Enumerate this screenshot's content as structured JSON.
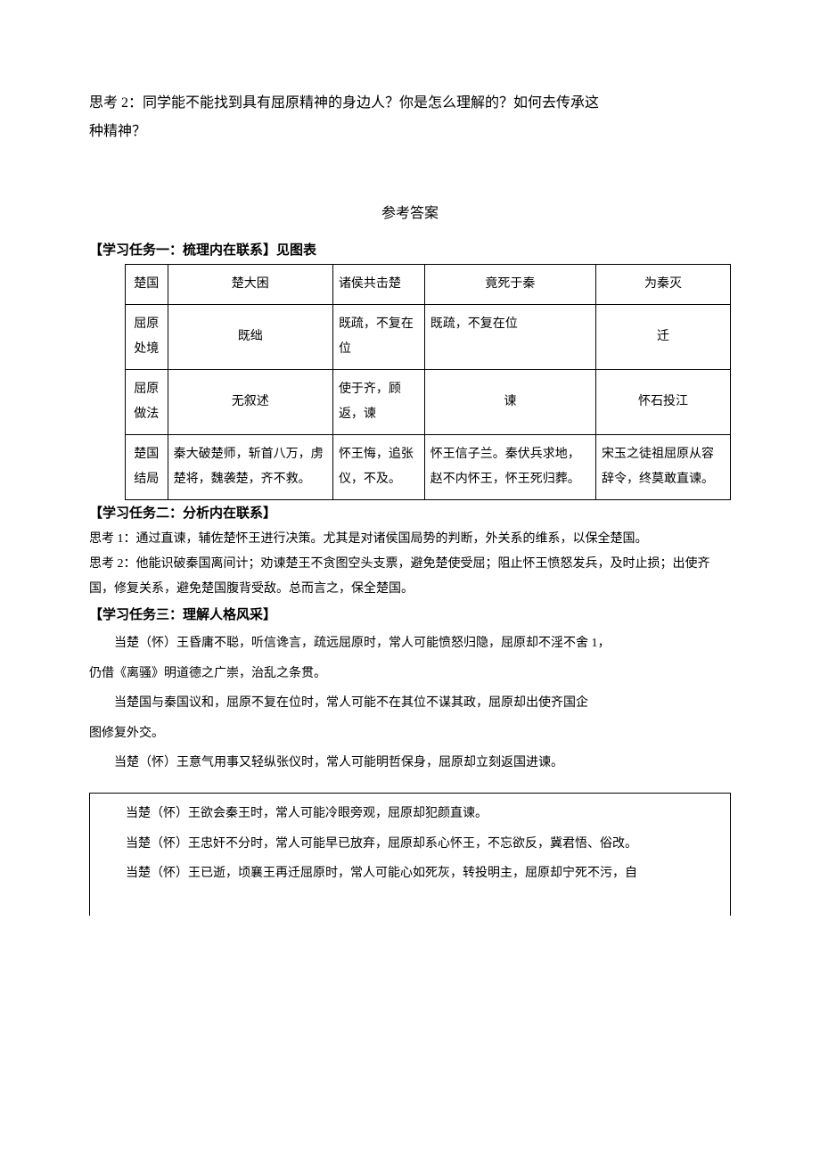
{
  "top": {
    "line1": "思考 2：同学能不能找到具有屈原精神的身边人？你是怎么理解的？如何去传承这",
    "line2": "种精神？"
  },
  "answer_heading": "参考答案",
  "task1": {
    "header": "【学习任务一：梳理内在联系】见图表",
    "r0": [
      "楚国",
      "楚大困",
      "诸侯共击楚",
      "竟死于秦",
      "为秦灭"
    ],
    "r1": [
      "屈原处境",
      "既绌",
      "既疏，不复在位",
      "既疏，不复在位",
      "迁"
    ],
    "r2": [
      "屈原做法",
      "无叙述",
      "使于齐，顾返，谏",
      "谏",
      "怀石投江"
    ],
    "r3": [
      "楚国结局",
      "秦大破楚师，斩首八万，虏楚将，魏袭楚，齐不救。",
      "怀王悔，追张仪，不及。",
      "怀王信子兰。秦伏兵求地，赵不内怀王，怀王死归葬。",
      "宋玉之徒祖屈原从容辞令，终莫敢直谏。"
    ]
  },
  "task2": {
    "header": "【学习任务二：分析内在联系】",
    "p1": "思考 1：通过直谏，辅佐楚怀王进行决策。尤其是对诸侯国局势的判断，外关系的维系，以保全楚国。",
    "p2": "思考 2：他能识破秦国离间计；劝谏楚王不贪图空头支票，避免楚使受屈；阻止怀王愤怒发兵，及时止损；出使齐国，修复关系，避免楚国腹背受敌。总而言之，保全楚国。"
  },
  "task3": {
    "header": "【学习任务三：理解人格风采】",
    "p1": "当楚（怀）王昏庸不聪，听信谗言，疏远屈原时，常人可能愤怒归隐，屈原却不淫不舍 1，",
    "p1b": "仍借《离骚》明道德之广崇，治乱之条贯。",
    "p2": "当楚国与秦国议和，屈原不复在位时，常人可能不在其位不谋其政，屈原却出使齐国企",
    "p2b": "图修复外交。",
    "p3": "当楚（怀）王意气用事又轻纵张仪时，常人可能明哲保身，屈原却立刻返国进谏。",
    "p4": "当楚（怀）王欲会秦王时，常人可能冷眼旁观，屈原却犯颜直谏。",
    "p5": "当楚（怀）王忠奸不分时，常人可能早已放弃，屈原却系心怀王，不忘欲反，冀君悟、俗改。",
    "p6": "当楚（怀）王已逝，顷襄王再迁屈原时，常人可能心如死灰，转投明主，屈原却宁死不污，自"
  }
}
